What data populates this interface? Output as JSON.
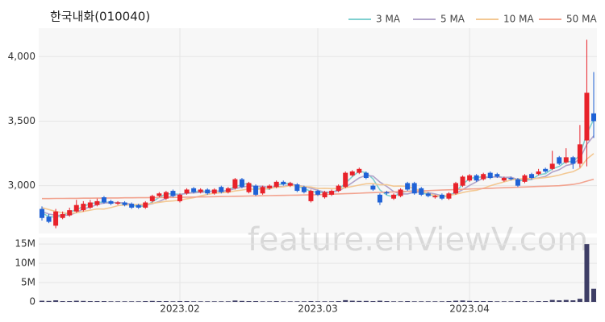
{
  "chart_data": {
    "type": "candlestick",
    "title": "한국내화(010040)",
    "watermark": "feature.enViewV.com",
    "categories": [
      null,
      null,
      null,
      null,
      null,
      null,
      null,
      null,
      null,
      null,
      null,
      null,
      null,
      null,
      null,
      null,
      null,
      null,
      null,
      null,
      "2023.02",
      null,
      null,
      null,
      null,
      null,
      null,
      null,
      null,
      null,
      null,
      null,
      null,
      null,
      null,
      null,
      null,
      null,
      null,
      null,
      "2023.03",
      null,
      null,
      null,
      null,
      null,
      null,
      null,
      null,
      null,
      null,
      null,
      null,
      null,
      null,
      null,
      null,
      null,
      null,
      null,
      null,
      null,
      "2023.04",
      null,
      null,
      null,
      null,
      null,
      null,
      null,
      null,
      null,
      null,
      null,
      null,
      null,
      null,
      null,
      null,
      null,
      null
    ],
    "open": [
      2820,
      2760,
      2690,
      2750,
      2770,
      2800,
      2810,
      2830,
      2850,
      2910,
      2880,
      2860,
      2870,
      2860,
      2850,
      2830,
      2880,
      2920,
      2900,
      2960,
      2880,
      2940,
      2980,
      2950,
      2970,
      2940,
      2990,
      2950,
      2980,
      3050,
      2950,
      3000,
      2940,
      2980,
      2990,
      3030,
      3000,
      3010,
      2990,
      2880,
      2960,
      2910,
      2930,
      2960,
      2990,
      3080,
      3100,
      3100,
      3000,
      2930,
      2950,
      2900,
      2920,
      3020,
      3020,
      2980,
      2940,
      2910,
      2930,
      2900,
      2940,
      3000,
      3040,
      3080,
      3050,
      3100,
      3090,
      3040,
      3060,
      3050,
      3030,
      3090,
      3090,
      3130,
      3130,
      3220,
      3180,
      3220,
      3170,
      3350,
      3560
    ],
    "high": [
      2840,
      2780,
      2820,
      2800,
      2830,
      2890,
      2880,
      2890,
      2900,
      2920,
      2890,
      2880,
      2880,
      2870,
      2860,
      2880,
      2930,
      2950,
      2960,
      2970,
      2940,
      2980,
      2990,
      2980,
      2980,
      2980,
      3000,
      2990,
      3060,
      3060,
      3030,
      3010,
      3000,
      3010,
      3040,
      3040,
      3030,
      3020,
      3000,
      2970,
      2970,
      2960,
      2970,
      3010,
      3110,
      3120,
      3140,
      3110,
      3010,
      2940,
      2960,
      2940,
      2980,
      3030,
      3030,
      2990,
      2950,
      2930,
      2940,
      2950,
      3030,
      3080,
      3090,
      3090,
      3100,
      3110,
      3100,
      3070,
      3070,
      3060,
      3090,
      3100,
      3130,
      3140,
      3270,
      3230,
      3290,
      3230,
      3470,
      4130,
      3880
    ],
    "low": [
      2730,
      2710,
      2670,
      2740,
      2760,
      2790,
      2800,
      2820,
      2840,
      2860,
      2850,
      2850,
      2840,
      2820,
      2820,
      2820,
      2870,
      2910,
      2890,
      2910,
      2870,
      2930,
      2940,
      2940,
      2930,
      2930,
      2940,
      2940,
      2970,
      2980,
      2940,
      2920,
      2930,
      2970,
      2980,
      3000,
      2990,
      2950,
      2940,
      2870,
      2920,
      2900,
      2920,
      2950,
      2980,
      3070,
      3090,
      3050,
      2960,
      2850,
      2930,
      2890,
      2910,
      2960,
      2930,
      2920,
      2910,
      2900,
      2890,
      2890,
      2930,
      2990,
      3030,
      3030,
      3040,
      3050,
      3060,
      3030,
      3040,
      2990,
      3020,
      3050,
      3080,
      3100,
      3120,
      3160,
      3170,
      3130,
      3140,
      3150,
      3370
    ],
    "close": [
      2750,
      2720,
      2800,
      2780,
      2810,
      2850,
      2860,
      2870,
      2880,
      2870,
      2860,
      2870,
      2850,
      2830,
      2830,
      2870,
      2920,
      2940,
      2950,
      2920,
      2930,
      2970,
      2950,
      2970,
      2940,
      2970,
      2950,
      2980,
      3050,
      2990,
      3020,
      2930,
      2990,
      3000,
      3030,
      3010,
      3020,
      2960,
      2950,
      2960,
      2930,
      2950,
      2960,
      3000,
      3100,
      3110,
      3130,
      3060,
      2970,
      2870,
      2940,
      2930,
      2970,
      2970,
      2940,
      2930,
      2920,
      2920,
      2900,
      2940,
      3020,
      3070,
      3080,
      3040,
      3090,
      3060,
      3070,
      3060,
      3050,
      3000,
      3080,
      3060,
      3110,
      3110,
      3170,
      3170,
      3220,
      3170,
      3320,
      3720,
      3500
    ],
    "volume": [
      300000,
      250000,
      400000,
      200000,
      200000,
      300000,
      250000,
      200000,
      200000,
      200000,
      150000,
      150000,
      150000,
      150000,
      150000,
      200000,
      250000,
      200000,
      200000,
      150000,
      200000,
      200000,
      150000,
      150000,
      150000,
      150000,
      150000,
      150000,
      350000,
      250000,
      200000,
      200000,
      150000,
      150000,
      200000,
      150000,
      150000,
      150000,
      150000,
      200000,
      150000,
      150000,
      150000,
      200000,
      450000,
      300000,
      250000,
      250000,
      200000,
      300000,
      200000,
      150000,
      150000,
      200000,
      150000,
      150000,
      150000,
      150000,
      150000,
      200000,
      300000,
      350000,
      250000,
      200000,
      200000,
      200000,
      150000,
      150000,
      150000,
      200000,
      200000,
      150000,
      200000,
      200000,
      500000,
      400000,
      500000,
      400000,
      800000,
      15000000,
      3400000
    ],
    "up_color": "#e8222a",
    "down_color": "#1f62d6",
    "volume_color": "#3e3e66",
    "series": [
      {
        "name": "3 MA",
        "color": "#7fd0d0",
        "values": [
          2790,
          2760,
          2757,
          2767,
          2797,
          2813,
          2840,
          2860,
          2870,
          2873,
          2870,
          2867,
          2860,
          2850,
          2837,
          2843,
          2873,
          2910,
          2937,
          2937,
          2933,
          2940,
          2950,
          2963,
          2953,
          2960,
          2953,
          2967,
          2993,
          3007,
          3020,
          2980,
          2980,
          2973,
          3007,
          3013,
          3020,
          2997,
          2977,
          2957,
          2947,
          2947,
          2947,
          2970,
          3020,
          3070,
          3113,
          3100,
          3053,
          2967,
          2927,
          2913,
          2947,
          2957,
          2960,
          2947,
          2930,
          2923,
          2913,
          2920,
          2953,
          3010,
          3057,
          3063,
          3070,
          3063,
          3073,
          3063,
          3060,
          3037,
          3043,
          3047,
          3083,
          3093,
          3130,
          3150,
          3187,
          3187,
          3237,
          3403,
          3513
        ]
      },
      {
        "name": "5 MA",
        "color": "#b1a3c9",
        "values": [
          2800,
          2780,
          2770,
          2770,
          2772,
          2792,
          2820,
          2834,
          2854,
          2866,
          2868,
          2870,
          2866,
          2856,
          2848,
          2850,
          2860,
          2878,
          2902,
          2926,
          2932,
          2942,
          2944,
          2948,
          2952,
          2960,
          2956,
          2962,
          2978,
          2988,
          2998,
          2994,
          2996,
          2986,
          2994,
          2992,
          3010,
          3004,
          2994,
          2980,
          2964,
          2950,
          2950,
          2960,
          2988,
          3024,
          3060,
          3080,
          3074,
          3028,
          2994,
          2954,
          2936,
          2936,
          2950,
          2948,
          2946,
          2936,
          2922,
          2922,
          2940,
          2970,
          3002,
          3030,
          3060,
          3068,
          3068,
          3064,
          3066,
          3048,
          3052,
          3050,
          3060,
          3072,
          3106,
          3124,
          3156,
          3168,
          3210,
          3320,
          3386
        ]
      },
      {
        "name": "10 MA",
        "color": "#f3c893",
        "values": [
          2830,
          2815,
          2800,
          2790,
          2785,
          2790,
          2800,
          2810,
          2820,
          2819,
          2830,
          2845,
          2850,
          2852,
          2854,
          2856,
          2863,
          2871,
          2878,
          2882,
          2888,
          2899,
          2907,
          2921,
          2932,
          2942,
          2945,
          2949,
          2959,
          2966,
          2975,
          2971,
          2975,
          2978,
          2987,
          2991,
          3001,
          2999,
          2993,
          2990,
          2978,
          2980,
          2977,
          2977,
          2984,
          2994,
          3005,
          3015,
          3016,
          3007,
          3008,
          2996,
          2997,
          2994,
          2978,
          2960,
          2939,
          2925,
          2918,
          2925,
          2933,
          2947,
          2958,
          2965,
          2980,
          3000,
          3015,
          3029,
          3044,
          3050,
          3056,
          3055,
          3058,
          3063,
          3071,
          3082,
          3097,
          3108,
          3135,
          3207,
          3249
        ]
      },
      {
        "name": "50 MA",
        "color": "#f2a38f",
        "values": [
          2900,
          2900,
          2901,
          2901,
          2902,
          2902,
          2903,
          2903,
          2904,
          2904,
          2905,
          2905,
          2906,
          2906,
          2907,
          2907,
          2908,
          2908,
          2909,
          2909,
          2910,
          2911,
          2912,
          2913,
          2914,
          2915,
          2916,
          2917,
          2918,
          2919,
          2920,
          2921,
          2922,
          2923,
          2924,
          2925,
          2926,
          2927,
          2928,
          2929,
          2930,
          2932,
          2934,
          2936,
          2938,
          2940,
          2942,
          2944,
          2946,
          2948,
          2950,
          2952,
          2954,
          2956,
          2958,
          2960,
          2962,
          2964,
          2966,
          2968,
          2970,
          2972,
          2974,
          2976,
          2978,
          2980,
          2982,
          2984,
          2986,
          2988,
          2990,
          2992,
          2994,
          2996,
          2998,
          3000,
          3005,
          3010,
          3020,
          3035,
          3050
        ]
      }
    ],
    "ylim": [
      2630,
      4220
    ],
    "yticks": [
      {
        "value": 3000,
        "label": "3,000"
      },
      {
        "value": 3500,
        "label": "3,500"
      },
      {
        "value": 4000,
        "label": "4,000"
      }
    ],
    "y2lim": [
      0,
      16700000
    ],
    "y2ticks": [
      0,
      {
        "value": 5000000,
        "label": "5M"
      },
      {
        "value": 10000000,
        "label": "10M"
      },
      {
        "value": 15000000,
        "label": "15M"
      }
    ],
    "grid": true,
    "legend": "top-right"
  }
}
